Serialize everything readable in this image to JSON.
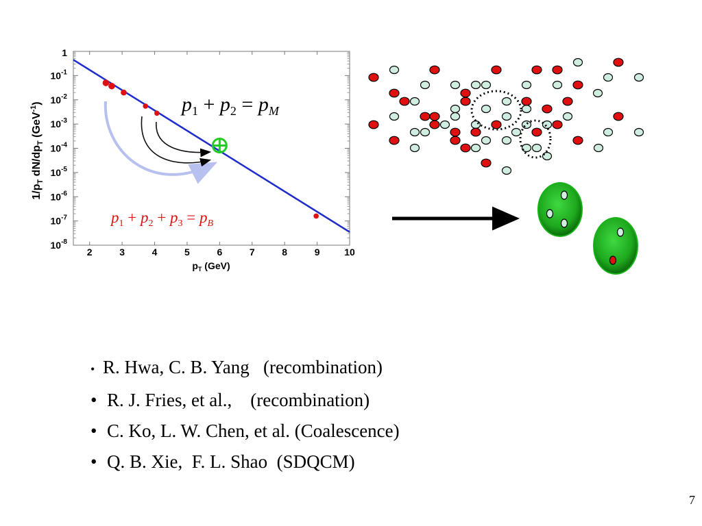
{
  "slide_number": "7",
  "formula_meson": {
    "p1": "p",
    "s1": "1",
    "plus1": " + ",
    "p2": "p",
    "s2": "2",
    "eq": " = ",
    "pm": "p",
    "sm": "M"
  },
  "formula_baryon": {
    "p1": "p",
    "s1": "1",
    "plus1": " + ",
    "p2": "p",
    "s2": "2",
    "plus2": " + ",
    "p3": "p",
    "s3": "3",
    "eq": " = ",
    "pb": "p",
    "sb": "B"
  },
  "bullets": [
    "R. Hwa, C. B. Yang   (recombination)",
    "R. J. Fries, et al.,    (recombination)",
    "C. Ko, L. W. Chen, et al. (Coalescence)",
    "Q. B. Xie,  F. L. Shao  (SDQCM)"
  ],
  "bullet_glyph": "•",
  "colors": {
    "line": "#1f2ccc",
    "point": "#e01010",
    "green": "#22cc22",
    "arrow_light": "#b8c0f0",
    "quark_red": "#e01010",
    "quark_light": "#cfeee0"
  },
  "chart_data": {
    "type": "line",
    "xlabel": "pT (GeV)",
    "ylabel": "1/pT dN/dpT (GeV-1)",
    "xlim": [
      1.5,
      10
    ],
    "ylim": [
      1e-08,
      1
    ],
    "yscale": "log",
    "x_ticks": [
      "2",
      "3",
      "4",
      "5",
      "6",
      "7",
      "8",
      "9",
      "10"
    ],
    "y_ticks": [
      {
        "base": "10",
        "exp": "-8"
      },
      {
        "base": "10",
        "exp": "-7"
      },
      {
        "base": "10",
        "exp": "-6"
      },
      {
        "base": "10",
        "exp": "-5"
      },
      {
        "base": "10",
        "exp": "-4"
      },
      {
        "base": "10",
        "exp": "-3"
      },
      {
        "base": "10",
        "exp": "-2"
      },
      {
        "base": "10",
        "exp": "-1"
      },
      {
        "base": "",
        "exp": "1"
      }
    ],
    "line": {
      "x": [
        1.5,
        10
      ],
      "y": [
        0.45,
        3.5e-08
      ]
    },
    "points": [
      {
        "x": 2.5,
        "y": 0.05
      },
      {
        "x": 2.68,
        "y": 0.037
      },
      {
        "x": 3.05,
        "y": 0.02
      },
      {
        "x": 3.72,
        "y": 0.0055
      },
      {
        "x": 4.07,
        "y": 0.0028
      },
      {
        "x": 8.97,
        "y": 1.6e-07
      }
    ],
    "target": {
      "x": 6.0,
      "y": 0.00013
    }
  }
}
